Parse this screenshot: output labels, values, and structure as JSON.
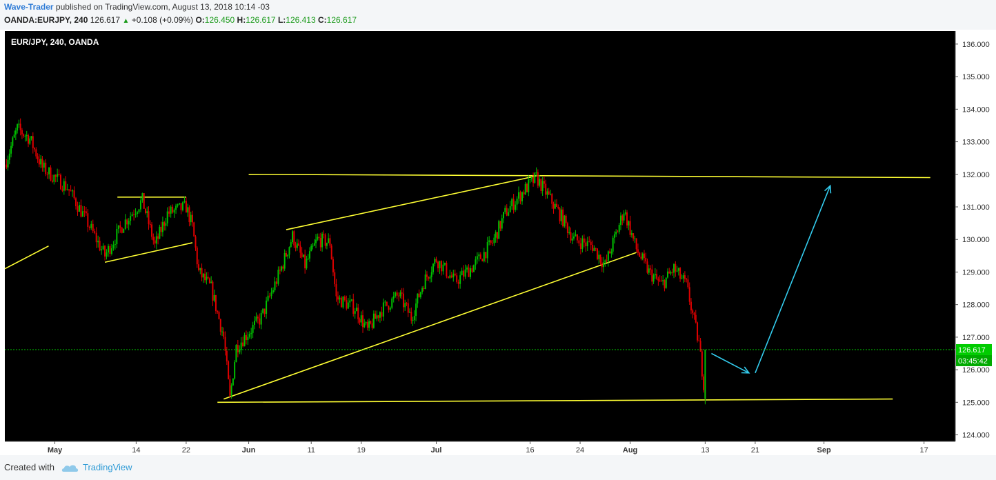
{
  "header": {
    "author": "Wave-Trader",
    "published_text": " published on TradingView.com, August 13, 2018 10:14 -03",
    "symbol": "OANDA:EURJPY, 240",
    "last": "126.617",
    "change": "+0.108 (+0.09%)",
    "open_label": "O:",
    "open": "126.450",
    "high_label": "H:",
    "high": "126.617",
    "low_label": "L:",
    "low": "126.413",
    "close_label": "C:",
    "close": "126.617"
  },
  "footer": {
    "created_with": "Created with",
    "brand": "TradingView"
  },
  "colors": {
    "background": "#000000",
    "up": "#00c000",
    "down": "#e00000",
    "trendline": "#ffff33",
    "arrow": "#33ccee",
    "price_line": "#00cc00",
    "axis_panel": "#ffffff"
  },
  "chart_data": {
    "type": "candlestick",
    "title": "EUR/JPY, 240, OANDA",
    "ylim": [
      123.8,
      136.4
    ],
    "y_ticks": [
      "124.000",
      "125.000",
      "126.000",
      "127.000",
      "128.000",
      "129.000",
      "130.000",
      "131.000",
      "132.000",
      "133.000",
      "134.000",
      "135.000",
      "136.000"
    ],
    "x_ticks": [
      "May",
      "14",
      "22",
      "Jun",
      "11",
      "19",
      "Jul",
      "16",
      "24",
      "Aug",
      "13",
      "21",
      "Sep",
      "17"
    ],
    "x_range": [
      "2018-04-23",
      "2018-09-22"
    ],
    "x_tick_dates": [
      "2018-05-01",
      "2018-05-14",
      "2018-05-22",
      "2018-06-01",
      "2018-06-11",
      "2018-06-19",
      "2018-07-01",
      "2018-07-16",
      "2018-07-24",
      "2018-08-01",
      "2018-08-13",
      "2018-08-21",
      "2018-09-01",
      "2018-09-17"
    ],
    "last_price_label": "126.617",
    "countdown_label": "03:45:42",
    "price_path": [
      [
        "2018-04-23",
        132.3
      ],
      [
        "2018-04-25",
        133.4
      ],
      [
        "2018-04-27",
        133.1
      ],
      [
        "2018-04-29",
        132.2
      ],
      [
        "2018-05-03",
        131.6
      ],
      [
        "2018-05-06",
        130.6
      ],
      [
        "2018-05-09",
        129.5
      ],
      [
        "2018-05-12",
        130.5
      ],
      [
        "2018-05-15",
        131.2
      ],
      [
        "2018-05-17",
        129.8
      ],
      [
        "2018-05-19",
        130.8
      ],
      [
        "2018-05-22",
        131.0
      ],
      [
        "2018-05-23",
        130.4
      ],
      [
        "2018-05-24",
        129.0
      ],
      [
        "2018-05-26",
        128.5
      ],
      [
        "2018-05-28",
        127.0
      ],
      [
        "2018-05-29",
        125.1
      ],
      [
        "2018-05-30",
        126.7
      ],
      [
        "2018-06-03",
        127.6
      ],
      [
        "2018-06-06",
        129.0
      ],
      [
        "2018-06-08",
        130.1
      ],
      [
        "2018-06-10",
        129.2
      ],
      [
        "2018-06-12",
        130.0
      ],
      [
        "2018-06-14",
        129.9
      ],
      [
        "2018-06-15",
        128.2
      ],
      [
        "2018-06-18",
        127.9
      ],
      [
        "2018-06-20",
        127.2
      ],
      [
        "2018-06-22",
        127.8
      ],
      [
        "2018-06-25",
        128.3
      ],
      [
        "2018-06-27",
        127.6
      ],
      [
        "2018-06-29",
        128.7
      ],
      [
        "2018-07-01",
        129.4
      ],
      [
        "2018-07-04",
        128.7
      ],
      [
        "2018-07-07",
        129.2
      ],
      [
        "2018-07-10",
        129.9
      ],
      [
        "2018-07-12",
        130.8
      ],
      [
        "2018-07-15",
        131.5
      ],
      [
        "2018-07-17",
        131.9
      ],
      [
        "2018-07-19",
        131.3
      ],
      [
        "2018-07-21",
        130.7
      ],
      [
        "2018-07-23",
        130.0
      ],
      [
        "2018-07-26",
        129.8
      ],
      [
        "2018-07-28",
        129.2
      ],
      [
        "2018-07-30",
        130.3
      ],
      [
        "2018-07-31",
        130.9
      ],
      [
        "2018-08-02",
        129.7
      ],
      [
        "2018-08-04",
        129.0
      ],
      [
        "2018-08-06",
        128.6
      ],
      [
        "2018-08-08",
        129.1
      ],
      [
        "2018-08-10",
        128.6
      ],
      [
        "2018-08-12",
        126.8
      ],
      [
        "2018-08-13",
        125.2
      ],
      [
        "2018-08-13",
        126.617
      ]
    ],
    "trendlines": [
      {
        "from": [
          "2018-04-23",
          129.1
        ],
        "to": [
          "2018-04-30",
          129.8
        ]
      },
      {
        "from": [
          "2018-05-11",
          131.3
        ],
        "to": [
          "2018-05-22",
          131.3
        ]
      },
      {
        "from": [
          "2018-05-09",
          129.3
        ],
        "to": [
          "2018-05-23",
          129.9
        ]
      },
      {
        "from": [
          "2018-05-27",
          125.0
        ],
        "to": [
          "2018-09-12",
          125.1
        ]
      },
      {
        "from": [
          "2018-05-28",
          125.1
        ],
        "to": [
          "2018-08-02",
          129.6
        ]
      },
      {
        "from": [
          "2018-06-07",
          130.3
        ],
        "to": [
          "2018-07-17",
          131.95
        ]
      },
      {
        "from": [
          "2018-06-01",
          132.0
        ],
        "to": [
          "2018-09-18",
          131.9
        ]
      }
    ],
    "forecast_arrows": [
      {
        "from": [
          "2018-08-14",
          126.5
        ],
        "to": [
          "2018-08-20",
          125.9
        ]
      },
      {
        "from": [
          "2018-08-21",
          125.9
        ],
        "to": [
          "2018-09-02",
          131.65
        ]
      }
    ]
  }
}
